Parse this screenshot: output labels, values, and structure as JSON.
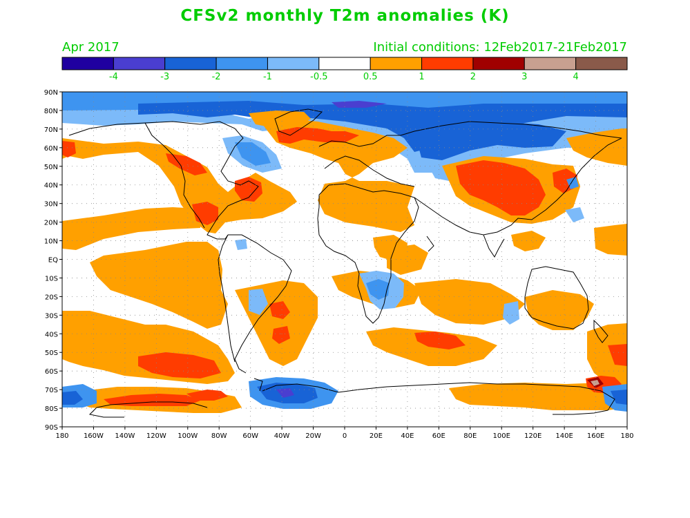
{
  "title": "CFSv2 monthly T2m anomalies (K)",
  "valid_month": "Apr 2017",
  "initial_conditions": "Initial conditions: 12Feb2017-21Feb2017",
  "colorbar": {
    "labels": [
      "-4",
      "-3",
      "-2",
      "-1",
      "-0.5",
      "0.5",
      "1",
      "2",
      "3",
      "4"
    ],
    "colors": [
      "#1f00a0",
      "#4a3ed0",
      "#1863d6",
      "#3e94f0",
      "#7cbaf9",
      "#ffffff",
      "#ffa000",
      "#ff3c00",
      "#a00000",
      "#c8a090",
      "#8a5a4a"
    ]
  },
  "axes": {
    "lat_labels": [
      "90N",
      "80N",
      "70N",
      "60N",
      "50N",
      "40N",
      "30N",
      "20N",
      "10N",
      "EQ",
      "10S",
      "20S",
      "30S",
      "40S",
      "50S",
      "60S",
      "70S",
      "80S",
      "90S"
    ],
    "lon_labels": [
      "180",
      "160W",
      "140W",
      "120W",
      "100W",
      "80W",
      "60W",
      "40W",
      "20W",
      "0",
      "20E",
      "40E",
      "60E",
      "80E",
      "100E",
      "120E",
      "140E",
      "160E",
      "180"
    ]
  }
}
